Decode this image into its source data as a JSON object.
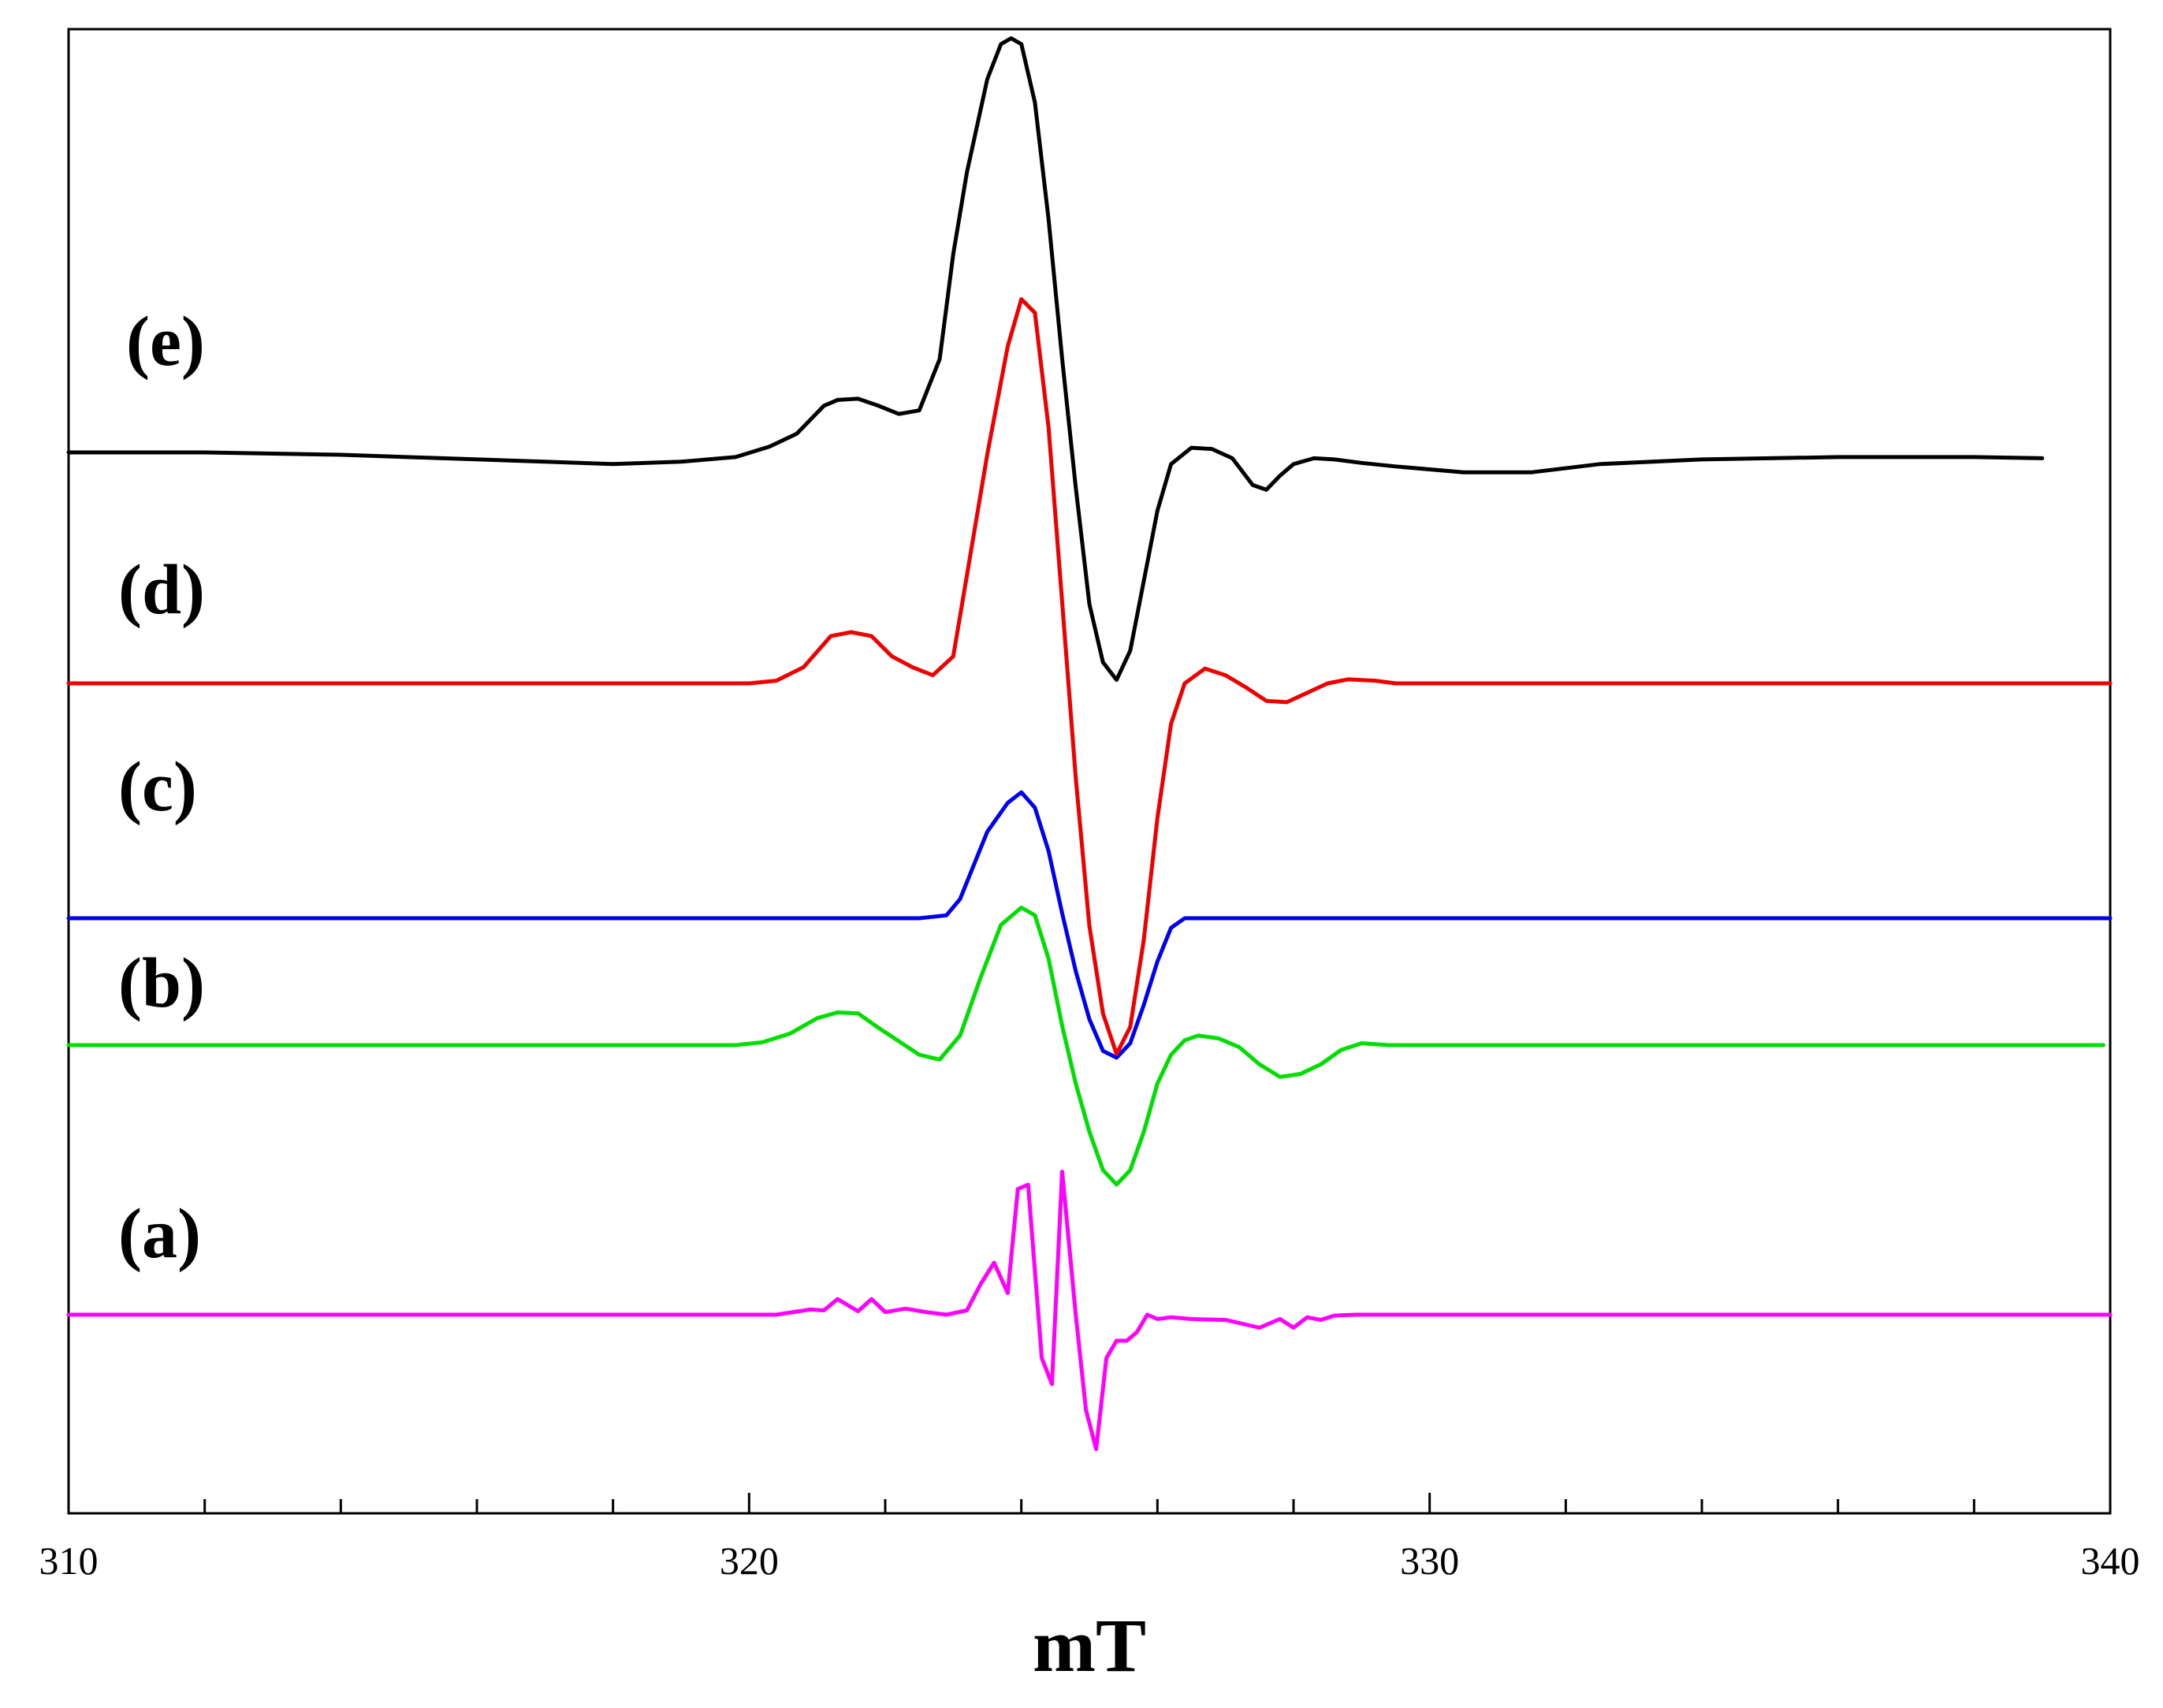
{
  "chart_data": {
    "type": "line",
    "xlabel": "mT",
    "ylabel": "",
    "xlim": [
      310,
      340
    ],
    "xticks": [
      "310",
      "320",
      "330",
      "340"
    ],
    "grid": false,
    "series": [
      {
        "name": "(a)",
        "color": "#ff00ff",
        "x": [
          310,
          320.4,
          320.9,
          321.1,
          321.3,
          321.6,
          321.8,
          322.0,
          322.3,
          322.6,
          322.9,
          323.2,
          323.4,
          323.6,
          323.8,
          323.95,
          324.1,
          324.3,
          324.45,
          324.6,
          324.8,
          324.95,
          325.1,
          325.25,
          325.4,
          325.55,
          325.7,
          325.85,
          326.0,
          326.2,
          326.5,
          327.0,
          327.5,
          327.8,
          328.0,
          328.2,
          328.4,
          328.6,
          328.9,
          329.2,
          340
        ],
        "y": [
          0,
          0,
          0.06,
          0.05,
          0.18,
          0.04,
          0.18,
          0.03,
          0.07,
          0.03,
          0.0,
          0.05,
          0.35,
          0.6,
          0.25,
          1.45,
          1.5,
          -0.5,
          -0.8,
          1.65,
          0.0,
          -1.1,
          -1.55,
          -0.5,
          -0.3,
          -0.3,
          -0.2,
          0.0,
          -0.05,
          -0.03,
          -0.05,
          -0.06,
          -0.15,
          -0.05,
          -0.15,
          -0.03,
          -0.06,
          -0.01,
          0.0,
          0.0,
          0
        ]
      },
      {
        "name": "(b)",
        "color": "#00dd00",
        "x": [
          310,
          319.8,
          320.2,
          320.6,
          321.0,
          321.3,
          321.6,
          321.9,
          322.2,
          322.5,
          322.8,
          323.1,
          323.4,
          323.7,
          324.0,
          324.2,
          324.4,
          324.6,
          324.8,
          325.0,
          325.2,
          325.4,
          325.6,
          325.8,
          326.0,
          326.2,
          326.4,
          326.6,
          326.9,
          327.2,
          327.5,
          327.8,
          328.1,
          328.4,
          328.7,
          329.0,
          329.4,
          339.9
        ],
        "y": [
          0,
          0,
          0.03,
          0.12,
          0.28,
          0.34,
          0.33,
          0.18,
          0.04,
          -0.1,
          -0.15,
          0.1,
          0.7,
          1.25,
          1.43,
          1.35,
          0.9,
          0.2,
          -0.4,
          -0.9,
          -1.3,
          -1.45,
          -1.3,
          -0.9,
          -0.4,
          -0.1,
          0.05,
          0.1,
          0.07,
          -0.02,
          -0.2,
          -0.33,
          -0.3,
          -0.2,
          -0.05,
          0.02,
          0.0,
          0
        ]
      },
      {
        "name": "(c)",
        "color": "#0000ee",
        "x": [
          310,
          322.5,
          322.9,
          323.1,
          323.3,
          323.5,
          323.8,
          324.0,
          324.2,
          324.4,
          324.6,
          324.8,
          325.0,
          325.2,
          325.4,
          325.6,
          325.8,
          326.0,
          326.2,
          326.4,
          326.7,
          327.0,
          340
        ],
        "y": [
          0,
          0,
          0.03,
          0.2,
          0.55,
          0.9,
          1.2,
          1.31,
          1.15,
          0.7,
          0.05,
          -0.55,
          -1.05,
          -1.38,
          -1.45,
          -1.3,
          -0.9,
          -0.45,
          -0.1,
          0.0,
          0.0,
          0.0,
          0
        ]
      },
      {
        "name": "(d)",
        "color": "#ee0000",
        "x": [
          310,
          320.0,
          320.4,
          320.8,
          321.2,
          321.5,
          321.8,
          322.1,
          322.4,
          322.7,
          323.0,
          323.2,
          323.5,
          323.8,
          324.0,
          324.2,
          324.4,
          324.6,
          324.8,
          325.0,
          325.2,
          325.4,
          325.6,
          325.8,
          326.0,
          326.2,
          326.4,
          326.7,
          327.0,
          327.3,
          327.6,
          327.9,
          328.2,
          328.5,
          328.8,
          329.2,
          329.5,
          340
        ],
        "y": [
          0,
          0,
          0.02,
          0.12,
          0.35,
          0.38,
          0.35,
          0.2,
          0.12,
          0.06,
          0.2,
          0.8,
          1.7,
          2.5,
          2.85,
          2.75,
          1.9,
          0.6,
          -0.7,
          -1.8,
          -2.45,
          -2.75,
          -2.55,
          -1.9,
          -1.0,
          -0.3,
          0.0,
          0.11,
          0.06,
          -0.03,
          -0.13,
          -0.14,
          -0.07,
          0.0,
          0.03,
          0.02,
          0.0,
          0
        ]
      },
      {
        "name": "(e)",
        "color": "#000000",
        "x": [
          310,
          312,
          314,
          315.5,
          317,
          318,
          319,
          319.8,
          320.3,
          320.7,
          321.1,
          321.3,
          321.6,
          321.9,
          322.2,
          322.5,
          322.8,
          323.0,
          323.2,
          323.5,
          323.7,
          323.85,
          324.0,
          324.2,
          324.4,
          324.6,
          324.8,
          325.0,
          325.2,
          325.4,
          325.6,
          325.8,
          326.0,
          326.2,
          326.5,
          326.8,
          327.1,
          327.4,
          327.6,
          327.8,
          328.0,
          328.3,
          328.6,
          329.0,
          329.5,
          330.5,
          331.5,
          332.5,
          334,
          336,
          338,
          339
        ],
        "y": [
          0,
          0.0,
          -0.02,
          -0.05,
          -0.08,
          -0.1,
          -0.08,
          -0.04,
          0.05,
          0.16,
          0.4,
          0.45,
          0.46,
          0.4,
          0.33,
          0.36,
          0.8,
          1.7,
          2.4,
          3.2,
          3.5,
          3.55,
          3.5,
          3.0,
          2.0,
          0.8,
          -0.3,
          -1.3,
          -1.8,
          -1.95,
          -1.7,
          -1.1,
          -0.5,
          -0.1,
          0.04,
          0.03,
          -0.05,
          -0.28,
          -0.32,
          -0.2,
          -0.1,
          -0.05,
          -0.06,
          -0.09,
          -0.12,
          -0.17,
          -0.17,
          -0.1,
          -0.06,
          -0.04,
          -0.04,
          -0.05
        ]
      }
    ]
  }
}
